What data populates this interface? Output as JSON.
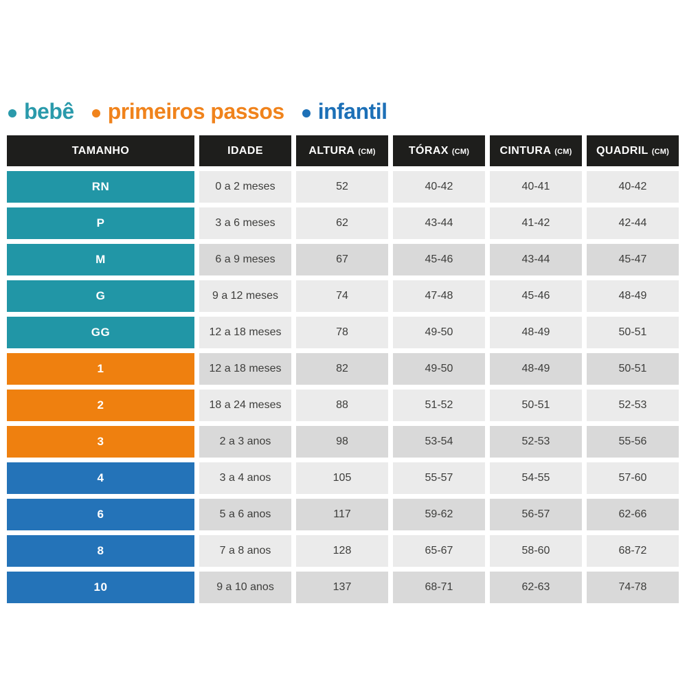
{
  "colors": {
    "page_bg": "#ffffff",
    "header_bg": "#1e1e1c",
    "header_text": "#ffffff",
    "row_light": "#ebebeb",
    "row_dark": "#d9d9d9",
    "cell_text": "#3d3d3b",
    "size_text": "#ffffff",
    "groups": {
      "bebe": "#2196a6",
      "primeiros_passos": "#ef800f",
      "infantil": "#2473b8"
    }
  },
  "legend": {
    "items": [
      {
        "label": "bebê",
        "group": "bebe",
        "color": "#2a9aab"
      },
      {
        "label": "primeiros passos",
        "group": "primeiros_passos",
        "color": "#f0831c"
      },
      {
        "label": "infantil",
        "group": "infantil",
        "color": "#1d70b7"
      }
    ]
  },
  "chart_data": {
    "type": "table",
    "title": "",
    "columns": [
      {
        "label": "TAMANHO",
        "unit": ""
      },
      {
        "label": "IDADE",
        "unit": ""
      },
      {
        "label": "ALTURA",
        "unit": "(CM)"
      },
      {
        "label": "TÓRAX",
        "unit": "(CM)"
      },
      {
        "label": "CINTURA",
        "unit": "(CM)"
      },
      {
        "label": "QUADRIL",
        "unit": "(CM)"
      }
    ],
    "value_fields": [
      "idade",
      "altura",
      "torax",
      "cintura",
      "quadril"
    ],
    "rows": [
      {
        "size": "RN",
        "idade": "0 a 2 meses",
        "altura": "52",
        "torax": "40-42",
        "cintura": "40-41",
        "quadril": "40-42",
        "group": "bebe",
        "shaded": false
      },
      {
        "size": "P",
        "idade": "3 a 6 meses",
        "altura": "62",
        "torax": "43-44",
        "cintura": "41-42",
        "quadril": "42-44",
        "group": "bebe",
        "shaded": false
      },
      {
        "size": "M",
        "idade": "6 a 9 meses",
        "altura": "67",
        "torax": "45-46",
        "cintura": "43-44",
        "quadril": "45-47",
        "group": "bebe",
        "shaded": true
      },
      {
        "size": "G",
        "idade": "9 a 12 meses",
        "altura": "74",
        "torax": "47-48",
        "cintura": "45-46",
        "quadril": "48-49",
        "group": "bebe",
        "shaded": false
      },
      {
        "size": "GG",
        "idade": "12 a 18 meses",
        "altura": "78",
        "torax": "49-50",
        "cintura": "48-49",
        "quadril": "50-51",
        "group": "bebe",
        "shaded": false
      },
      {
        "size": "1",
        "idade": "12 a 18 meses",
        "altura": "82",
        "torax": "49-50",
        "cintura": "48-49",
        "quadril": "50-51",
        "group": "primeiros_passos",
        "shaded": true
      },
      {
        "size": "2",
        "idade": "18 a 24 meses",
        "altura": "88",
        "torax": "51-52",
        "cintura": "50-51",
        "quadril": "52-53",
        "group": "primeiros_passos",
        "shaded": false
      },
      {
        "size": "3",
        "idade": "2 a 3 anos",
        "altura": "98",
        "torax": "53-54",
        "cintura": "52-53",
        "quadril": "55-56",
        "group": "primeiros_passos",
        "shaded": true
      },
      {
        "size": "4",
        "idade": "3 a 4 anos",
        "altura": "105",
        "torax": "55-57",
        "cintura": "54-55",
        "quadril": "57-60",
        "group": "infantil",
        "shaded": false
      },
      {
        "size": "6",
        "idade": "5 a 6 anos",
        "altura": "117",
        "torax": "59-62",
        "cintura": "56-57",
        "quadril": "62-66",
        "group": "infantil",
        "shaded": true
      },
      {
        "size": "8",
        "idade": "7 a 8 anos",
        "altura": "128",
        "torax": "65-67",
        "cintura": "58-60",
        "quadril": "68-72",
        "group": "infantil",
        "shaded": false
      },
      {
        "size": "10",
        "idade": "9 a 10 anos",
        "altura": "137",
        "torax": "68-71",
        "cintura": "62-63",
        "quadril": "74-78",
        "group": "infantil",
        "shaded": true
      }
    ]
  }
}
